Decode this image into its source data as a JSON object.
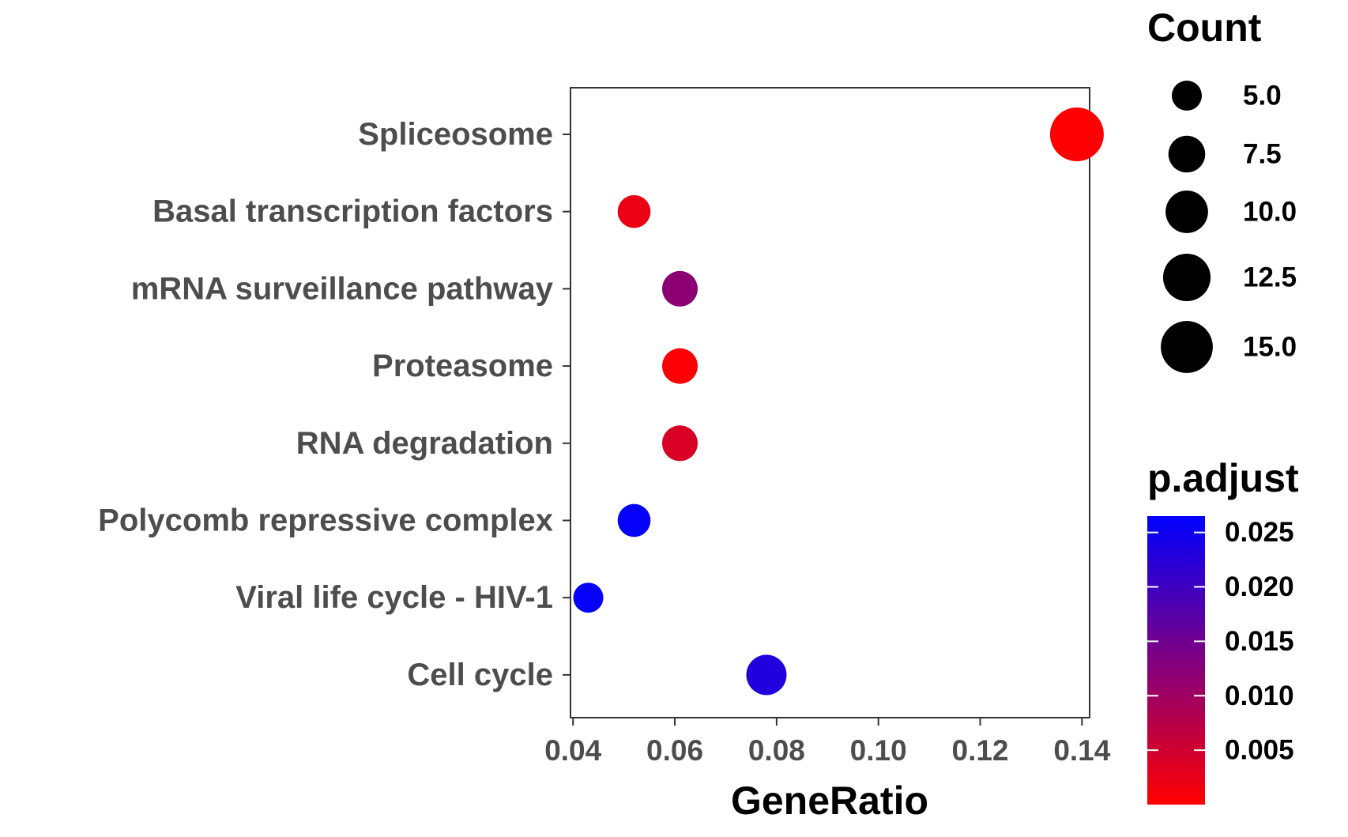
{
  "chart_data": {
    "type": "scatter",
    "xlabel": "GeneRatio",
    "ylabel": "",
    "xlim": [
      0.0395,
      0.1415
    ],
    "x_ticks": [
      "0.04",
      "0.06",
      "0.08",
      "0.10",
      "0.12",
      "0.14"
    ],
    "x_tick_values": [
      0.04,
      0.06,
      0.08,
      0.1,
      0.12,
      0.14
    ],
    "categories": [
      "Spliceosome",
      "Basal transcription factors",
      "mRNA surveillance pathway",
      "Proteasome",
      "RNA degradation",
      "Polycomb repressive complex",
      "Viral life cycle - HIV-1",
      "Cell cycle"
    ],
    "points": [
      {
        "category": "Spliceosome",
        "gene_ratio": 0.139,
        "count": 16,
        "p_adjust": 0.0001
      },
      {
        "category": "Basal transcription factors",
        "gene_ratio": 0.052,
        "count": 6,
        "p_adjust": 0.002
      },
      {
        "category": "mRNA surveillance pathway",
        "gene_ratio": 0.061,
        "count": 7,
        "p_adjust": 0.012
      },
      {
        "category": "Proteasome",
        "gene_ratio": 0.061,
        "count": 7,
        "p_adjust": 0.0005
      },
      {
        "category": "RNA degradation",
        "gene_ratio": 0.061,
        "count": 7,
        "p_adjust": 0.004
      },
      {
        "category": "Polycomb repressive complex",
        "gene_ratio": 0.052,
        "count": 6,
        "p_adjust": 0.026
      },
      {
        "category": "Viral life cycle - HIV-1",
        "gene_ratio": 0.043,
        "count": 5,
        "p_adjust": 0.026
      },
      {
        "category": "Cell cycle",
        "gene_ratio": 0.078,
        "count": 9,
        "p_adjust": 0.023
      }
    ],
    "size_legend": {
      "title": "Count",
      "labels": [
        "5.0",
        "7.5",
        "10.0",
        "12.5",
        "15.0"
      ],
      "values": [
        5.0,
        7.5,
        10.0,
        12.5,
        15.0
      ]
    },
    "color_legend": {
      "title": "p.adjust",
      "labels": [
        "0.025",
        "0.020",
        "0.015",
        "0.010",
        "0.005"
      ],
      "values": [
        0.025,
        0.02,
        0.015,
        0.01,
        0.005
      ],
      "range": [
        0.0,
        0.0265
      ],
      "low_color": "#ff0000",
      "high_color": "#0000ff"
    },
    "grid": false,
    "legend_position": "right"
  }
}
